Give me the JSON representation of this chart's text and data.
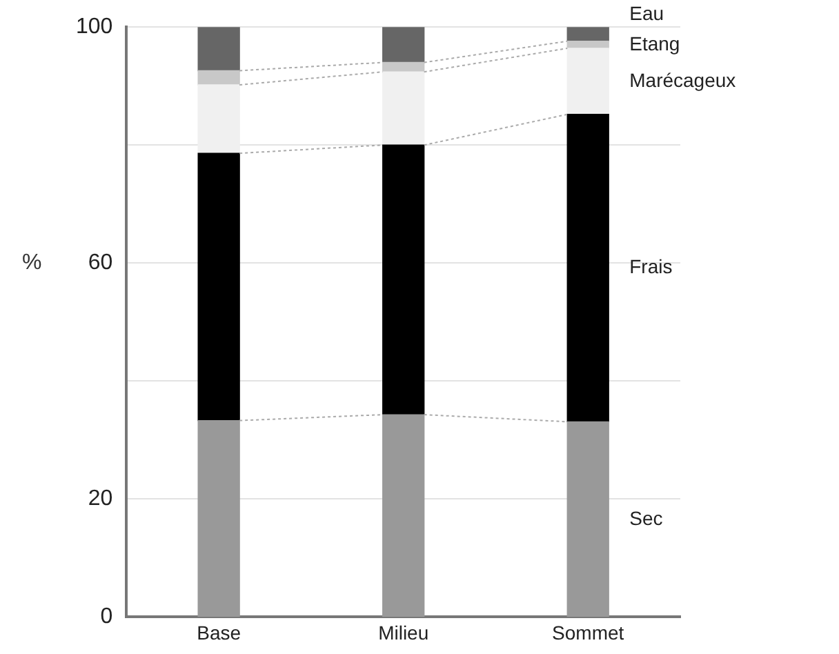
{
  "chart_data": {
    "type": "bar",
    "stacked": true,
    "ylabel": "%",
    "categories": [
      "Base",
      "Milieu",
      "Sommet"
    ],
    "ylim": [
      0,
      100
    ],
    "yticks": [
      0,
      20,
      {
        "value": 40,
        "label": null
      },
      60,
      {
        "value": 80,
        "label": null
      },
      100
    ],
    "grid": "y",
    "legend": false,
    "series": [
      {
        "name": "Sec",
        "color": "#999999",
        "values": [
          33.3,
          34.3,
          33.1
        ]
      },
      {
        "name": "Frais",
        "color": "#000000",
        "values": [
          45.3,
          45.7,
          52.1
        ]
      },
      {
        "name": "Marécageux",
        "color": "#f0f0f0",
        "values": [
          11.6,
          12.4,
          11.2
        ]
      },
      {
        "name": "Etang",
        "color": "#c8c8c8",
        "values": [
          2.4,
          1.6,
          1.2
        ]
      },
      {
        "name": "Eau",
        "color": "#666666",
        "values": [
          7.4,
          6,
          2.4
        ]
      }
    ]
  }
}
